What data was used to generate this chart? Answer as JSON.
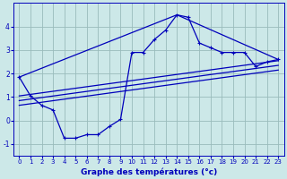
{
  "title": "",
  "xlabel": "Graphe des températures (°c)",
  "ylabel": "",
  "bg_color": "#cce8e8",
  "line_color": "#0000bb",
  "grid_color": "#99bbbb",
  "xlim": [
    -0.5,
    23.5
  ],
  "ylim": [
    -1.5,
    5.0
  ],
  "xticks": [
    0,
    1,
    2,
    3,
    4,
    5,
    6,
    7,
    8,
    9,
    10,
    11,
    12,
    13,
    14,
    15,
    16,
    17,
    18,
    19,
    20,
    21,
    22,
    23
  ],
  "yticks": [
    -1,
    0,
    1,
    2,
    3,
    4
  ],
  "series_main": {
    "x": [
      0,
      1,
      2,
      3,
      4,
      5,
      6,
      7,
      8,
      9,
      10,
      11,
      12,
      13,
      14,
      15,
      16,
      17,
      18,
      19,
      20,
      21,
      22,
      23
    ],
    "y": [
      1.85,
      1.05,
      0.65,
      0.45,
      -0.75,
      -0.75,
      -0.6,
      -0.6,
      -0.25,
      0.05,
      2.9,
      2.9,
      3.45,
      3.85,
      4.5,
      4.4,
      3.3,
      3.1,
      2.9,
      2.9,
      2.9,
      2.3,
      2.5,
      2.6
    ]
  },
  "series_lines": [
    {
      "x": [
        0,
        14,
        23
      ],
      "y": [
        1.85,
        4.5,
        2.6
      ]
    },
    {
      "x": [
        0,
        23
      ],
      "y": [
        1.05,
        2.55
      ]
    },
    {
      "x": [
        0,
        23
      ],
      "y": [
        0.85,
        2.35
      ]
    },
    {
      "x": [
        0,
        23
      ],
      "y": [
        0.65,
        2.15
      ]
    }
  ],
  "marker": "+",
  "markersize": 3.5,
  "markeredgewidth": 0.8,
  "linewidth": 0.9,
  "xlabel_fontsize": 6.5,
  "xlabel_color": "#0000bb",
  "tick_fontsize": 5.0,
  "ytick_fontsize": 5.5
}
